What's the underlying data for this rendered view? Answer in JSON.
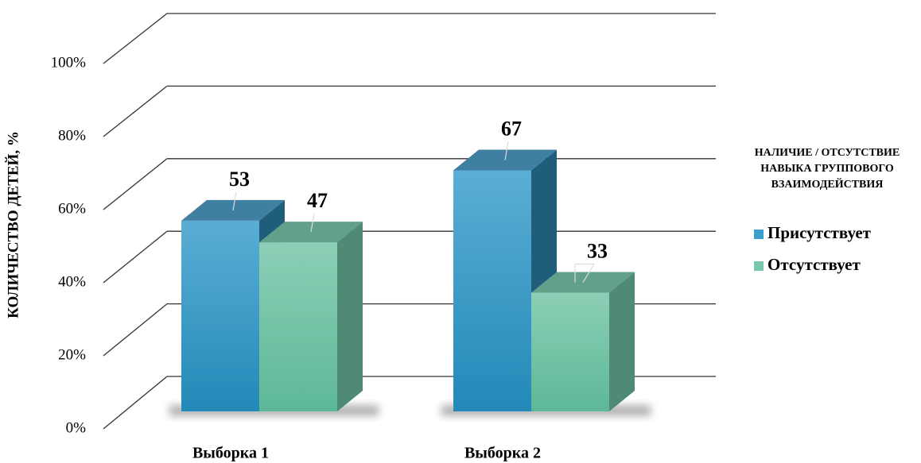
{
  "chart_data": {
    "type": "bar3d",
    "y_label": "КОЛИЧЕСТВО ДЕТЕЙ, %",
    "legend_title": [
      "НАЛИЧИЕ / ОТСУТСТВИЕ",
      "НАВЫКА ГРУППОВОГО",
      "ВЗАИМОДЕЙСТВИЯ"
    ],
    "legend_position": "right",
    "categories": [
      "Выборка 1",
      "Выборка 2"
    ],
    "series": [
      {
        "name": "Присутствует",
        "color": "#3a9fcc",
        "values": [
          53,
          67
        ]
      },
      {
        "name": "Отсутствует",
        "color": "#79c7ab",
        "values": [
          47,
          33
        ]
      }
    ],
    "ylim": [
      0,
      100
    ],
    "yticks": [
      {
        "value": 0,
        "label": "0%"
      },
      {
        "value": 20,
        "label": "20%"
      },
      {
        "value": 40,
        "label": "40%"
      },
      {
        "value": 60,
        "label": "60%"
      },
      {
        "value": 80,
        "label": "80%"
      },
      {
        "value": 100,
        "label": "100%"
      }
    ],
    "grid": true
  }
}
